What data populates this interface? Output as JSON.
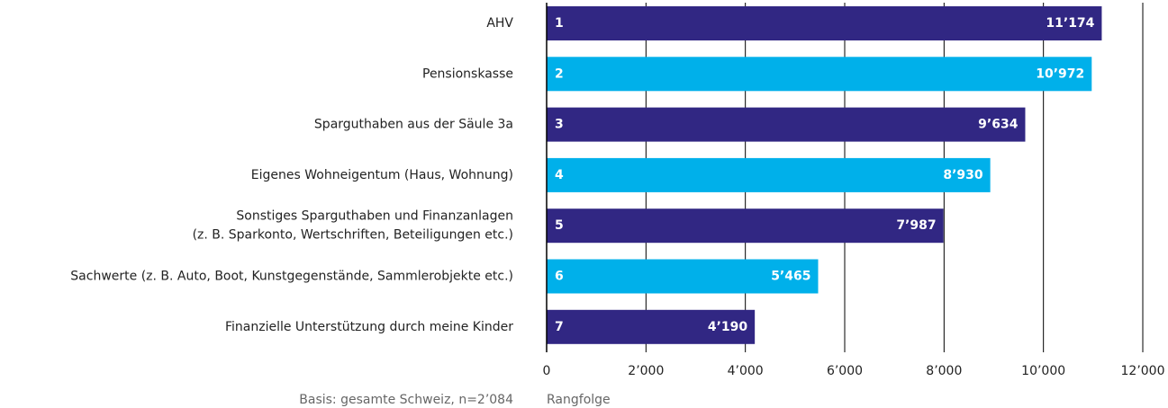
{
  "chart_data": {
    "type": "barh",
    "categories": [
      "AHV",
      "Pensionskasse",
      "Sparguthaben aus der Säule 3a",
      "Eigenes Wohneigentum (Haus, Wohnung)",
      "Sonstiges Sparguthaben und Finanzanlagen\n(z. B. Sparkonto, Wertschriften, Beteiligungen etc.)",
      "Sachwerte (z. B. Auto, Boot, Kunstgegenstände, Sammlerobjekte etc.)",
      "Finanzielle Unterstützung durch meine Kinder"
    ],
    "ranks": [
      1,
      2,
      3,
      4,
      5,
      6,
      7
    ],
    "values": [
      11174,
      10972,
      9634,
      8930,
      7987,
      5465,
      4190
    ],
    "value_labels": [
      "11’174",
      "10’972",
      "9’634",
      "8’930",
      "7’987",
      "5’465",
      "4’190"
    ],
    "colors": [
      "#312783",
      "#00b0ea",
      "#312783",
      "#00b0ea",
      "#312783",
      "#00b0ea",
      "#312783"
    ],
    "xlim": [
      0,
      12000
    ],
    "xticks": [
      0,
      {
        "value": 2000,
        "label": "2’000"
      },
      {
        "value": 4000,
        "label": "4’000"
      },
      {
        "value": 6000,
        "label": "6’000"
      },
      {
        "value": 8000,
        "label": "8’000"
      },
      {
        "value": 10000,
        "label": "10’000"
      },
      {
        "value": 12000,
        "label": "12’000"
      }
    ],
    "grid": true,
    "xlabel": "Rangfolge",
    "note": "Basis: gesamte Schweiz, n=2’084"
  }
}
